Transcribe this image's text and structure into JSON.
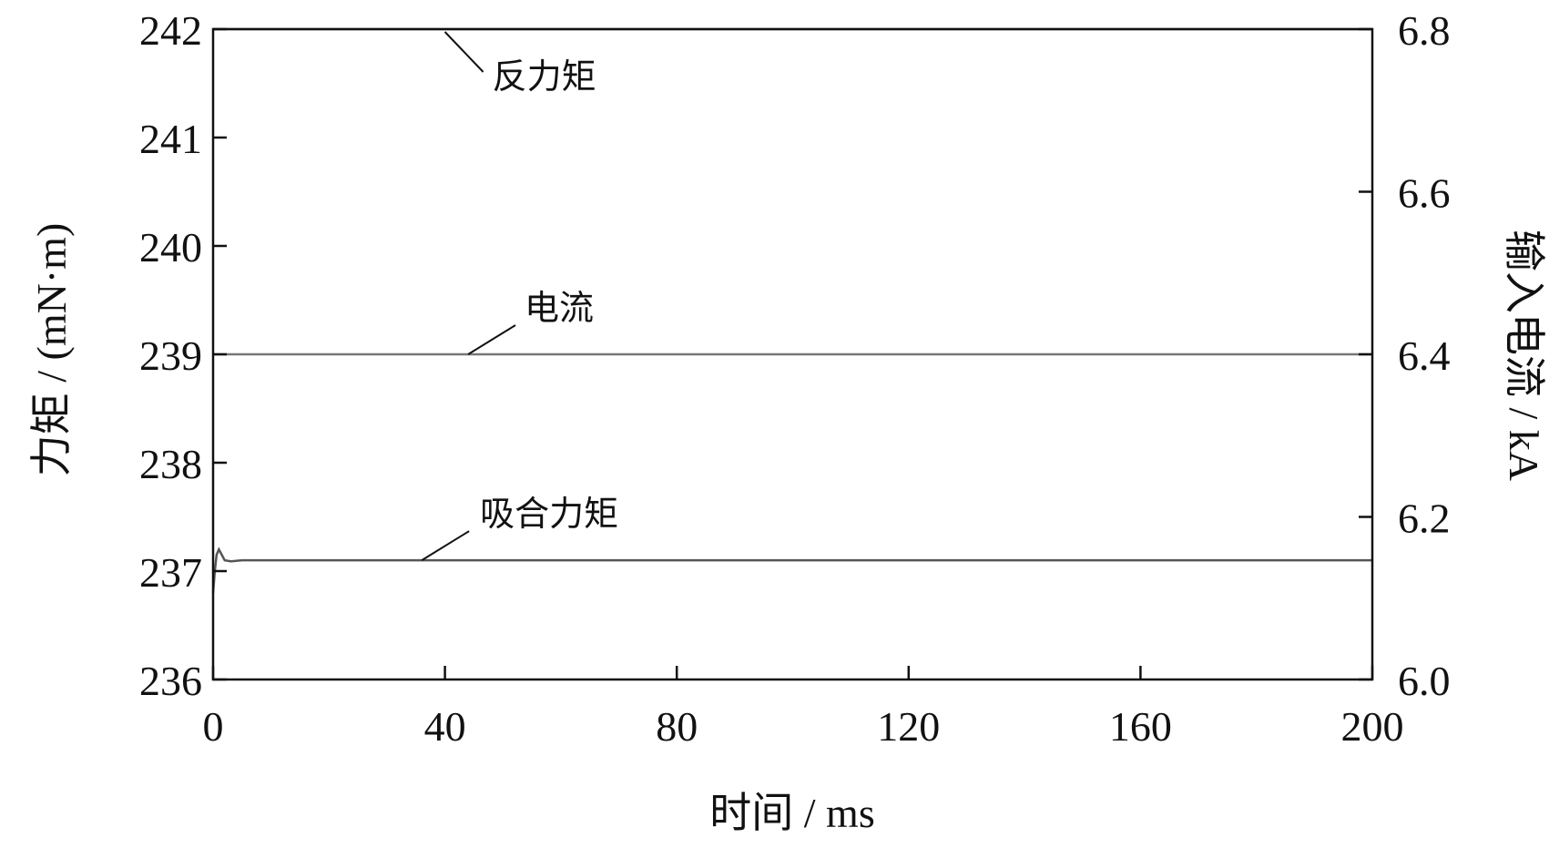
{
  "chart_data": {
    "type": "line",
    "xlabel": "时间 / ms",
    "ylabel_left": "力矩 / (mN·m)",
    "ylabel_right": "输入电流 / kA",
    "xlim": [
      0,
      200
    ],
    "ylim_left": [
      236,
      242
    ],
    "ylim_right": [
      6.0,
      6.8
    ],
    "x_ticks": [
      "0",
      "40",
      "80",
      "120",
      "160",
      "200"
    ],
    "y_left_ticks": [
      "236",
      "237",
      "238",
      "239",
      "240",
      "241",
      "242"
    ],
    "y_right_ticks": [
      "6.0",
      "6.2",
      "6.4",
      "6.6",
      "6.8"
    ],
    "grid": false,
    "series": [
      {
        "name": "反力矩",
        "axis": "left",
        "color": "#777777",
        "x": [
          0,
          200
        ],
        "y": [
          242,
          242
        ]
      },
      {
        "name": "电流",
        "axis": "right",
        "color": "#777777",
        "x": [
          0,
          200
        ],
        "y": [
          6.4,
          6.4
        ]
      },
      {
        "name": "吸合力矩",
        "axis": "left",
        "color": "#555555",
        "x": [
          0,
          0.3,
          0.6,
          1.0,
          1.5,
          2.0,
          3.0,
          5.0,
          200
        ],
        "y": [
          236.8,
          237.0,
          237.15,
          237.2,
          237.15,
          237.1,
          237.09,
          237.1,
          237.1
        ]
      }
    ]
  }
}
